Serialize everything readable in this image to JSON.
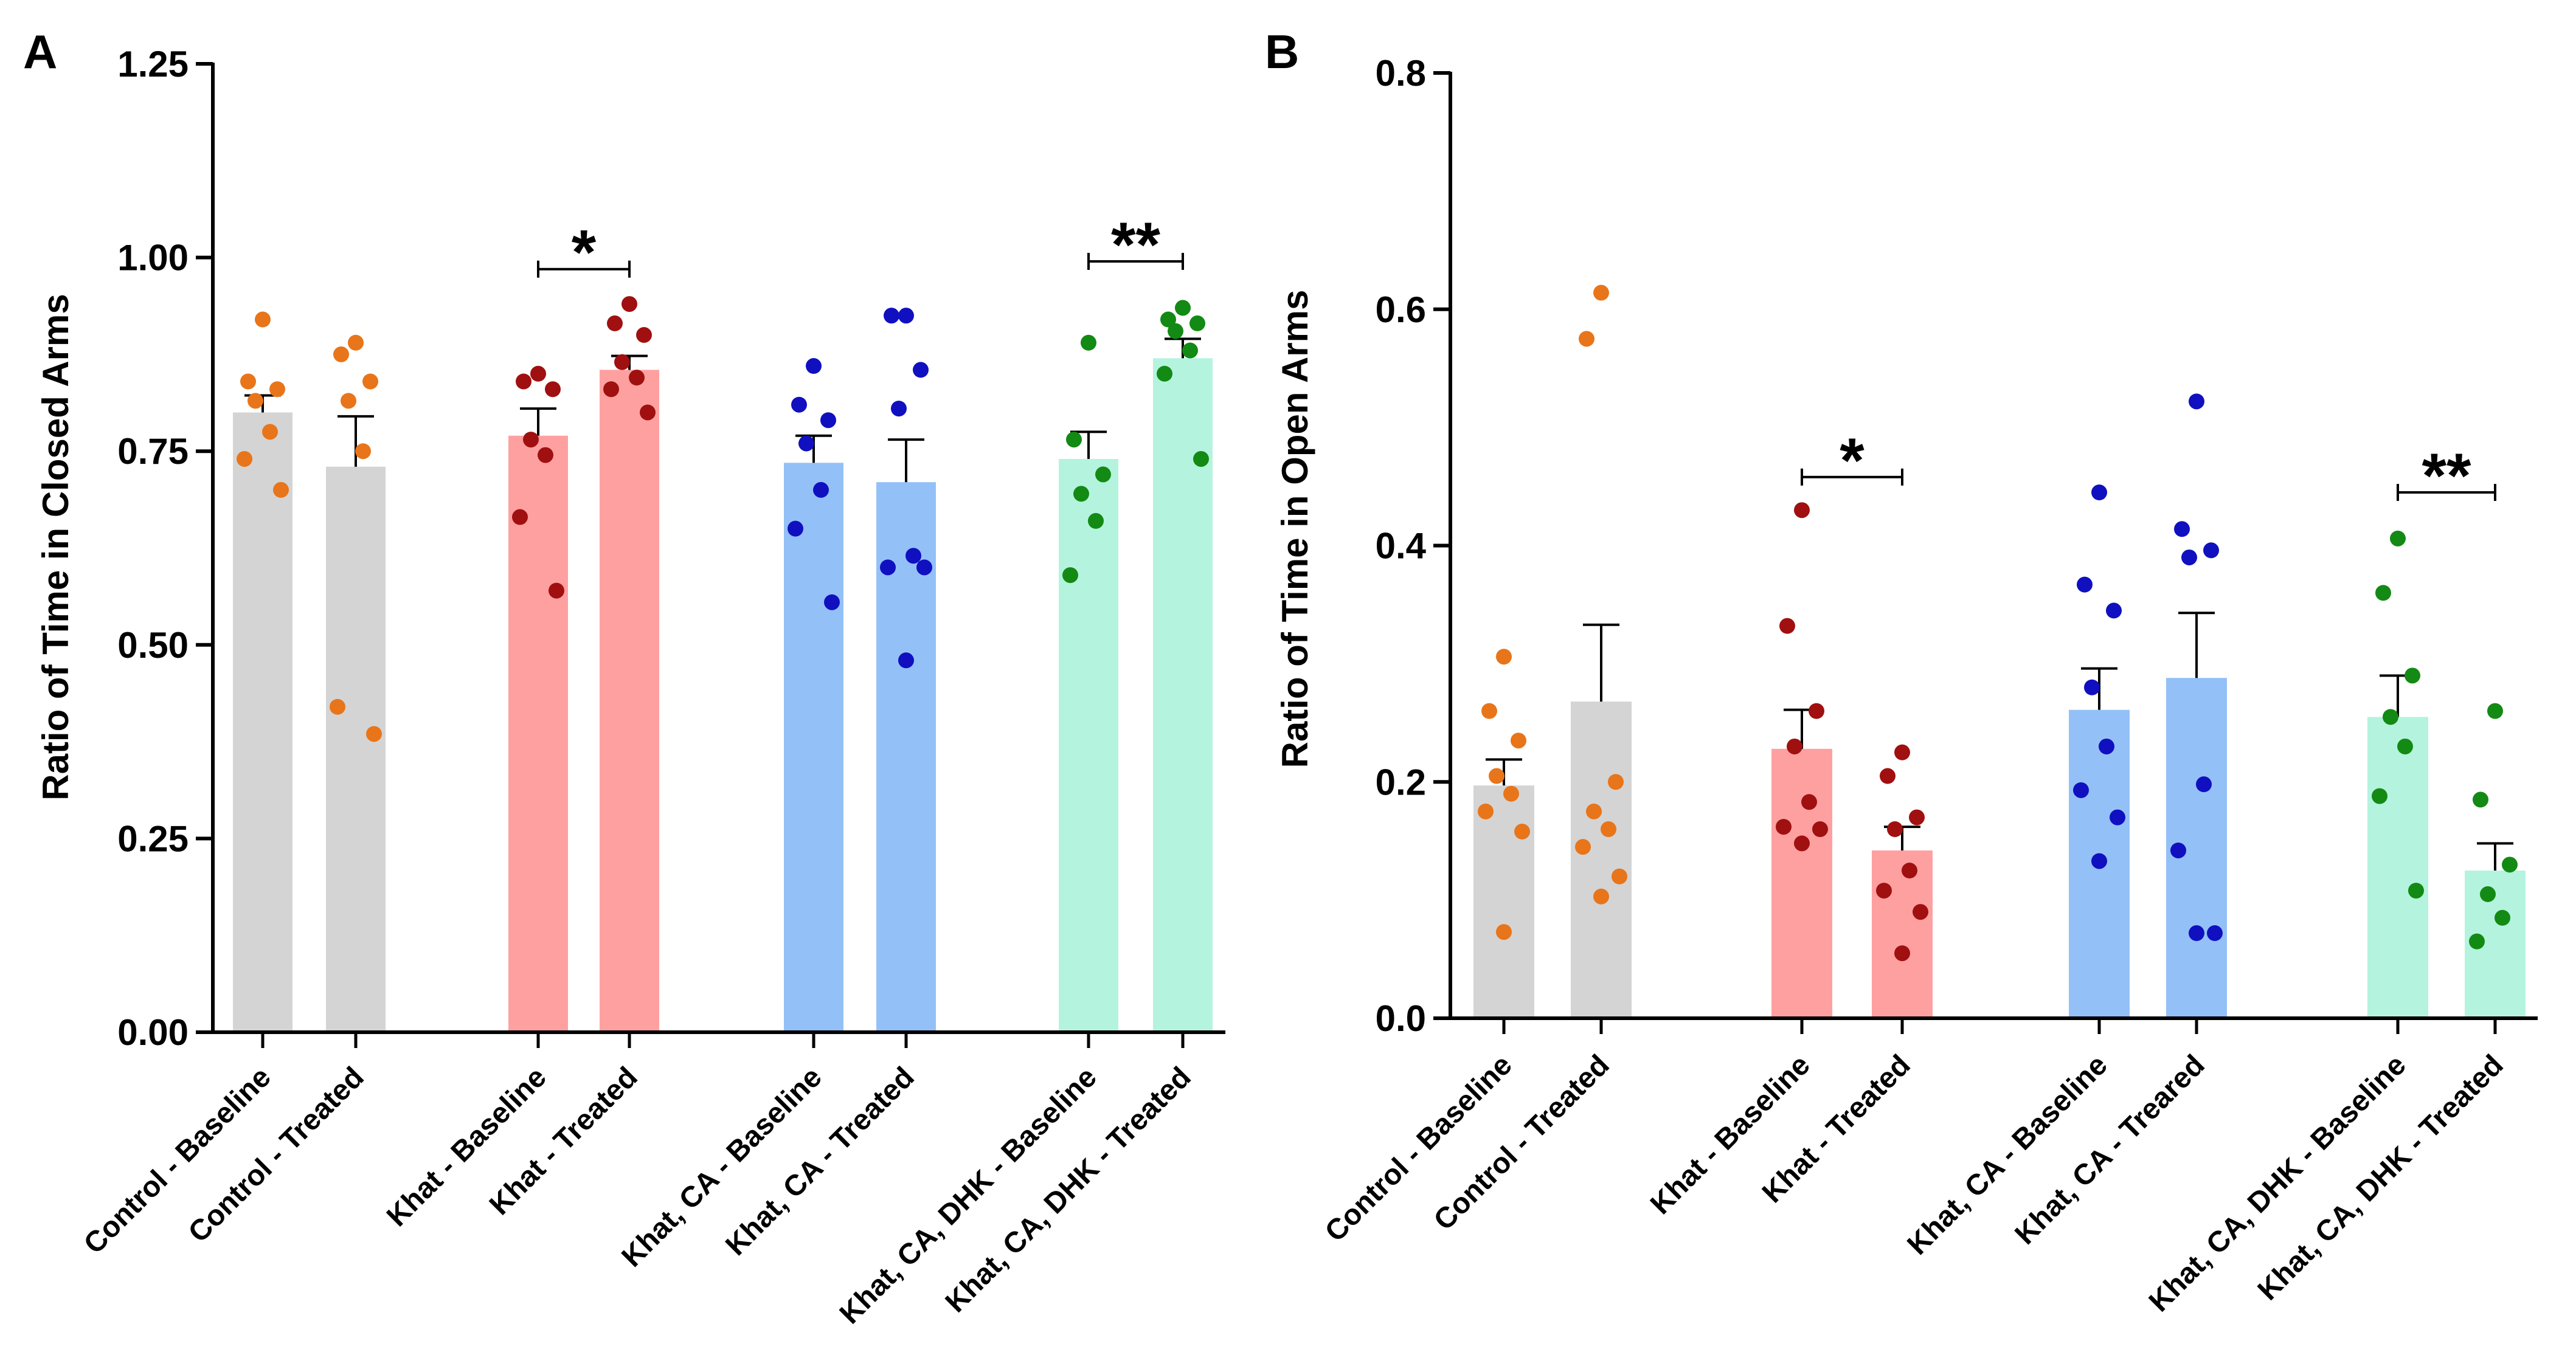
{
  "panels": [
    {
      "label": "A",
      "ylabel": "Ratio of Time in Closed Arms",
      "ylim": [
        0,
        1.25
      ],
      "yticks": [
        0,
        0.25,
        0.5,
        0.75,
        1.0,
        1.25
      ],
      "yticklabels": [
        "0.00",
        "0.25",
        "0.50",
        "0.75",
        "1.00",
        "1.25"
      ]
    },
    {
      "label": "B",
      "ylabel": "Ratio of Time in Open Arms",
      "ylim": [
        0,
        0.8
      ],
      "yticks": [
        0,
        0.2,
        0.4,
        0.6,
        0.8
      ],
      "yticklabels": [
        "0.0",
        "0.2",
        "0.4",
        "0.6",
        "0.8"
      ]
    }
  ],
  "chart_data": [
    {
      "type": "bar",
      "title": "A",
      "xlabel": "",
      "ylabel": "Ratio of Time in Closed Arms",
      "ylim": [
        0,
        1.25
      ],
      "categories": [
        "Control - Baseline",
        "Control - Treated",
        "Khat - Baseline",
        "Khat - Treated",
        "Khat, CA - Baseline",
        "Khat, CA - Treated",
        "Khat, CA, DHK - Baseline",
        "Khat, CA, DHK - Treated"
      ],
      "values": [
        0.8,
        0.73,
        0.77,
        0.855,
        0.735,
        0.71,
        0.74,
        0.87
      ],
      "errors": [
        0.022,
        0.065,
        0.035,
        0.018,
        0.035,
        0.055,
        0.035,
        0.025
      ],
      "points": [
        [
          0.92,
          0.84,
          0.83,
          0.815,
          0.775,
          0.74,
          0.7
        ],
        [
          0.89,
          0.875,
          0.84,
          0.815,
          0.75,
          0.42,
          0.385
        ],
        [
          0.85,
          0.84,
          0.83,
          0.765,
          0.745,
          0.665,
          0.57
        ],
        [
          0.94,
          0.915,
          0.9,
          0.865,
          0.845,
          0.83,
          0.8
        ],
        [
          0.86,
          0.81,
          0.79,
          0.76,
          0.7,
          0.65,
          0.555
        ],
        [
          0.925,
          0.925,
          0.855,
          0.805,
          0.615,
          0.6,
          0.6,
          0.48
        ],
        [
          0.89,
          0.765,
          0.72,
          0.695,
          0.66,
          0.59
        ],
        [
          0.935,
          0.92,
          0.915,
          0.905,
          0.88,
          0.85,
          0.74
        ]
      ],
      "colors": [
        "#e8751a",
        "#e8751a",
        "#a01010",
        "#a01010",
        "#1010c0",
        "#1010c0",
        "#138a13",
        "#138a13"
      ],
      "bar_colors": [
        "#d4d4d4",
        "#d4d4d4",
        "#ffa0a0",
        "#ffa0a0",
        "#94c0f8",
        "#94c0f8",
        "#b4f4de",
        "#b4f4de"
      ],
      "significance": [
        {
          "from": 2,
          "to": 3,
          "y": 0.985,
          "label": "*"
        },
        {
          "from": 6,
          "to": 7,
          "y": 0.995,
          "label": "**"
        }
      ]
    },
    {
      "type": "bar",
      "title": "B",
      "xlabel": "",
      "ylabel": "Ratio of Time in Open Arms",
      "ylim": [
        0,
        0.8
      ],
      "categories": [
        "Control - Baseline",
        "Control - Treated",
        "Khat - Baseline",
        "Khat - Treated",
        "Khat, CA - Baseline",
        "Khat, CA - Treared",
        "Khat, CA, DHK - Baseline",
        "Khat, CA, DHK - Treated"
      ],
      "values": [
        0.197,
        0.268,
        0.228,
        0.142,
        0.261,
        0.288,
        0.255,
        0.125
      ],
      "errors": [
        0.022,
        0.065,
        0.033,
        0.02,
        0.035,
        0.055,
        0.035,
        0.023
      ],
      "points": [
        [
          0.306,
          0.26,
          0.235,
          0.205,
          0.19,
          0.175,
          0.158,
          0.073
        ],
        [
          0.614,
          0.575,
          0.2,
          0.175,
          0.16,
          0.145,
          0.12,
          0.103
        ],
        [
          0.43,
          0.332,
          0.26,
          0.23,
          0.183,
          0.162,
          0.16,
          0.148
        ],
        [
          0.225,
          0.205,
          0.17,
          0.16,
          0.125,
          0.108,
          0.09,
          0.055
        ],
        [
          0.445,
          0.367,
          0.345,
          0.28,
          0.23,
          0.193,
          0.17,
          0.133
        ],
        [
          0.522,
          0.414,
          0.396,
          0.39,
          0.198,
          0.142,
          0.072,
          0.072
        ],
        [
          0.406,
          0.36,
          0.29,
          0.255,
          0.23,
          0.188,
          0.108
        ],
        [
          0.26,
          0.185,
          0.13,
          0.105,
          0.085,
          0.065
        ]
      ],
      "colors": [
        "#e8751a",
        "#e8751a",
        "#a01010",
        "#a01010",
        "#1010c0",
        "#1010c0",
        "#138a13",
        "#138a13"
      ],
      "bar_colors": [
        "#d4d4d4",
        "#d4d4d4",
        "#ffa0a0",
        "#ffa0a0",
        "#94c0f8",
        "#94c0f8",
        "#b4f4de",
        "#b4f4de"
      ],
      "significance": [
        {
          "from": 2,
          "to": 3,
          "y": 0.458,
          "label": "*"
        },
        {
          "from": 6,
          "to": 7,
          "y": 0.445,
          "label": "**"
        }
      ]
    }
  ]
}
